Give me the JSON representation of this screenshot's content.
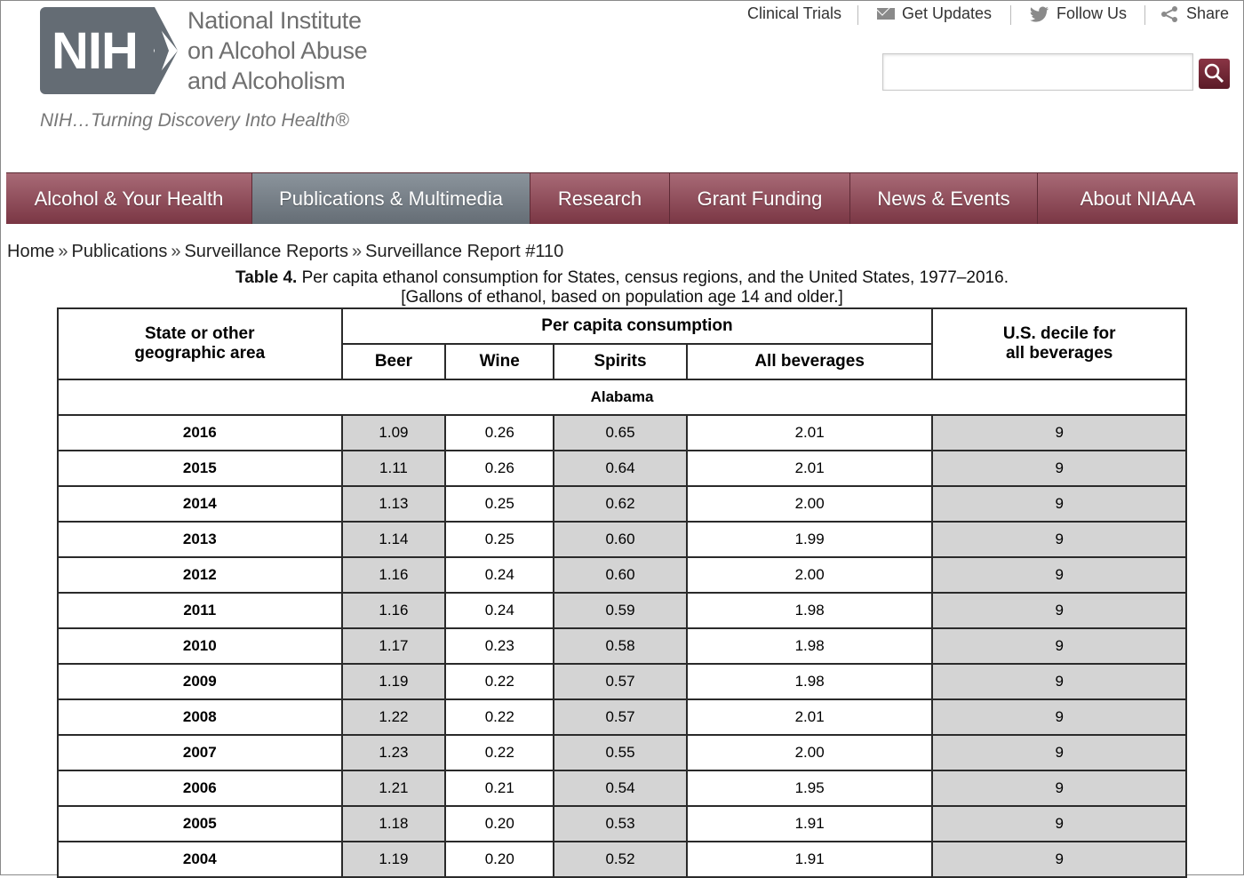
{
  "logo": {
    "abbr": "NIH",
    "org_lines": [
      "National Institute",
      "on Alcohol Abuse",
      "and Alcoholism"
    ],
    "tagline": "NIH…Turning Discovery Into Health®"
  },
  "utility_links": [
    "Clinical Trials",
    "Get Updates",
    "Follow Us",
    "Share"
  ],
  "search": {
    "placeholder": ""
  },
  "nav": {
    "items": [
      "Alcohol & Your Health",
      "Publications & Multimedia",
      "Research",
      "Grant Funding",
      "News & Events",
      "About NIAAA"
    ],
    "active": "Publications & Multimedia"
  },
  "breadcrumb": [
    "Home",
    "Publications",
    "Surveillance Reports",
    "Surveillance Report #110"
  ],
  "breadcrumb_sep": "»",
  "table_caption": {
    "label": "Table 4.",
    "title": "Per capita ethanol consumption for States, census regions, and the United States, 1977–2016.",
    "subtitle": "[Gallons of ethanol, based on population age 14 and older.]"
  },
  "table": {
    "col_state": "State or other geographic area",
    "col_group": "Per capita consumption",
    "col_beer": "Beer",
    "col_wine": "Wine",
    "col_spirits": "Spirits",
    "col_all": "All beverages",
    "col_decile": "U.S. decile for all beverages",
    "state": "Alabama",
    "rows": [
      [
        "2016",
        "1.09",
        "0.26",
        "0.65",
        "2.01",
        "9"
      ],
      [
        "2015",
        "1.11",
        "0.26",
        "0.64",
        "2.01",
        "9"
      ],
      [
        "2014",
        "1.13",
        "0.25",
        "0.62",
        "2.00",
        "9"
      ],
      [
        "2013",
        "1.14",
        "0.25",
        "0.60",
        "1.99",
        "9"
      ],
      [
        "2012",
        "1.16",
        "0.24",
        "0.60",
        "2.00",
        "9"
      ],
      [
        "2011",
        "1.16",
        "0.24",
        "0.59",
        "1.98",
        "9"
      ],
      [
        "2010",
        "1.17",
        "0.23",
        "0.58",
        "1.98",
        "9"
      ],
      [
        "2009",
        "1.19",
        "0.22",
        "0.57",
        "1.98",
        "9"
      ],
      [
        "2008",
        "1.22",
        "0.22",
        "0.57",
        "2.01",
        "9"
      ],
      [
        "2007",
        "1.23",
        "0.22",
        "0.55",
        "2.00",
        "9"
      ],
      [
        "2006",
        "1.21",
        "0.21",
        "0.54",
        "1.95",
        "9"
      ],
      [
        "2005",
        "1.18",
        "0.20",
        "0.53",
        "1.91",
        "9"
      ],
      [
        "2004",
        "1.19",
        "0.20",
        "0.52",
        "1.91",
        "9"
      ]
    ]
  }
}
